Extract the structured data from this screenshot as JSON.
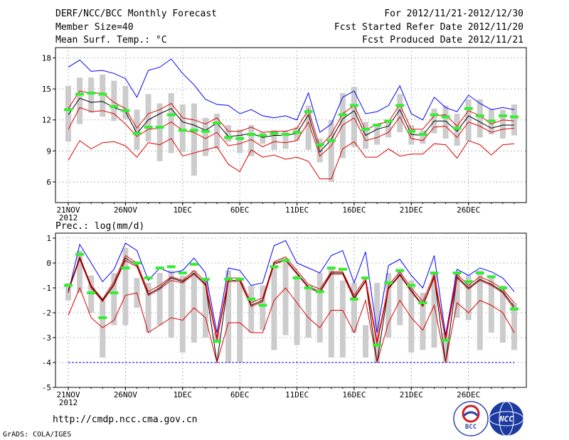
{
  "header": {
    "title": "DERF/NCC/BCC Monthly Forecast",
    "member_size": "Member Size=40",
    "variable": "Mean Surf. Temp.: °C",
    "period": "For 2012/11/21-2012/12/30",
    "start_date": "Fcst Started Refer Date 2012/11/20",
    "produced_date": "Fcst Produced Date 2012/11/21"
  },
  "precip_label": "Prec.: log(mm/d)",
  "footer": {
    "url": "http://cmdp.ncc.cma.gov.cn",
    "credit": "GrADS: COLA/IGES",
    "logo_bcc": "BCC",
    "logo_ncc": "NCC"
  },
  "colors": {
    "max_line": "#0000ff",
    "min_line": "#e00000",
    "mean_line": "#000000",
    "box": "#cccccc",
    "obs_marker": "#33ee33"
  },
  "chart_data": [
    {
      "type": "line",
      "title": "Mean Surf. Temp.: °C",
      "xlabel": "",
      "ylabel": "°C",
      "ylim": [
        4,
        19
      ],
      "yticks": [
        6,
        9,
        12,
        15,
        18
      ],
      "xticks": [
        {
          "day": 0,
          "label": "21NOV",
          "sub": "2012"
        },
        {
          "day": 5,
          "label": "26NOV"
        },
        {
          "day": 10,
          "label": "1DEC"
        },
        {
          "day": 15,
          "label": "6DEC"
        },
        {
          "day": 20,
          "label": "11DEC"
        },
        {
          "day": 25,
          "label": "16DEC"
        },
        {
          "day": 30,
          "label": "21DEC"
        },
        {
          "day": 35,
          "label": "26DEC"
        }
      ],
      "grid": true,
      "box_low": [
        9.9,
        11.6,
        12.7,
        12.3,
        11.9,
        12.1,
        9.1,
        9.9,
        8.0,
        8.8,
        8.9,
        6.6,
        8.5,
        9.2,
        9.9,
        8.8,
        8.5,
        9.7,
        9.1,
        9.2,
        10.0,
        9.1,
        7.9,
        6.0,
        8.3,
        9.4,
        9.2,
        9.6,
        10.3,
        10.8,
        9.6,
        9.7,
        10.7,
        10.2,
        9.5,
        10.0,
        10.3,
        10.6,
        10.2,
        10.5
      ],
      "box_high": [
        15.3,
        16.1,
        16.1,
        16.4,
        15.8,
        15.3,
        13.0,
        14.5,
        13.6,
        14.6,
        13.5,
        13.6,
        12.2,
        12.6,
        11.5,
        11.1,
        11.5,
        10.8,
        11.0,
        11.0,
        11.3,
        13.4,
        10.2,
        12.0,
        14.6,
        15.2,
        11.8,
        11.6,
        12.0,
        14.5,
        11.5,
        11.0,
        13.1,
        13.4,
        12.6,
        14.0,
        14.0,
        13.0,
        13.0,
        13.5
      ],
      "obs": [
        13.0,
        14.5,
        14.6,
        14.5,
        13.3,
        12.9,
        10.7,
        11.3,
        11.3,
        12.5,
        11.0,
        11.0,
        10.9,
        11.7,
        10.3,
        10.2,
        10.6,
        10.5,
        10.7,
        10.6,
        10.8,
        12.8,
        9.6,
        10.0,
        12.5,
        13.4,
        11.1,
        11.5,
        11.9,
        13.4,
        10.9,
        10.6,
        12.5,
        12.3,
        11.2,
        13.1,
        12.4,
        11.9,
        12.4,
        12.3
      ],
      "series": [
        {
          "name": "max",
          "values": [
            17.1,
            17.8,
            16.7,
            16.8,
            16.5,
            16.0,
            14.2,
            16.8,
            17.1,
            17.9,
            16.5,
            15.4,
            14.0,
            13.5,
            13.4,
            12.6,
            13.0,
            12.4,
            12.2,
            12.4,
            12.0,
            14.6,
            10.8,
            11.6,
            14.2,
            14.8,
            12.6,
            12.8,
            13.4,
            15.3,
            12.6,
            12.0,
            14.2,
            13.2,
            12.8,
            14.4,
            13.6,
            13.0,
            13.2,
            13.0
          ]
        },
        {
          "name": "p90",
          "values": [
            13.1,
            14.8,
            14.6,
            14.6,
            13.7,
            13.1,
            11.2,
            12.6,
            13.0,
            13.6,
            12.2,
            12.0,
            11.6,
            12.2,
            10.9,
            10.9,
            11.3,
            10.8,
            10.9,
            10.9,
            11.2,
            13.0,
            9.4,
            10.6,
            12.6,
            13.4,
            11.0,
            11.6,
            11.8,
            13.5,
            11.1,
            11.1,
            12.4,
            12.5,
            11.4,
            12.9,
            12.4,
            11.6,
            12.0,
            11.9
          ]
        },
        {
          "name": "mean",
          "values": [
            12.5,
            14.1,
            13.7,
            13.8,
            13.2,
            12.8,
            10.7,
            12.0,
            12.6,
            13.1,
            11.8,
            11.5,
            11.0,
            11.7,
            10.4,
            10.5,
            10.7,
            10.3,
            10.5,
            10.5,
            10.7,
            12.5,
            8.9,
            10.1,
            12.1,
            12.9,
            10.5,
            11.1,
            11.4,
            13.0,
            10.6,
            10.5,
            11.9,
            11.9,
            10.9,
            12.4,
            11.8,
            11.2,
            11.5,
            11.5
          ]
        },
        {
          "name": "p10",
          "values": [
            11.1,
            13.2,
            12.8,
            12.9,
            12.6,
            11.6,
            10.4,
            11.1,
            11.2,
            11.8,
            11.0,
            10.8,
            10.2,
            10.8,
            9.5,
            9.7,
            10.1,
            9.4,
            9.9,
            9.8,
            10.0,
            11.8,
            8.5,
            9.5,
            11.5,
            12.2,
            10.0,
            10.3,
            10.8,
            12.3,
            10.2,
            10.0,
            11.3,
            11.4,
            10.3,
            11.8,
            11.4,
            10.8,
            11.1,
            11.2
          ]
        },
        {
          "name": "min",
          "values": [
            8.1,
            10.0,
            9.2,
            9.8,
            9.9,
            9.5,
            8.4,
            9.8,
            9.6,
            10.2,
            8.5,
            8.8,
            9.1,
            9.4,
            7.7,
            7.0,
            9.1,
            8.4,
            8.6,
            8.2,
            8.4,
            8.0,
            6.3,
            6.3,
            9.2,
            9.9,
            8.4,
            8.4,
            9.2,
            8.5,
            8.7,
            8.7,
            9.7,
            9.6,
            8.3,
            10.0,
            9.6,
            8.6,
            9.6,
            9.7
          ]
        }
      ]
    },
    {
      "type": "line",
      "title": "Prec.: log(mm/d)",
      "xlabel": "",
      "ylabel": "log(mm/d)",
      "ylim": [
        -5,
        1.2
      ],
      "yticks": [
        -5,
        -4,
        -3,
        -2,
        -1,
        0,
        1
      ],
      "xticks": [
        {
          "day": 0,
          "label": "21NOV",
          "sub": "2012"
        },
        {
          "day": 5,
          "label": "26NOV"
        },
        {
          "day": 10,
          "label": "1DEC"
        },
        {
          "day": 15,
          "label": "6DEC"
        },
        {
          "day": 20,
          "label": "11DEC"
        },
        {
          "day": 25,
          "label": "16DEC"
        },
        {
          "day": 30,
          "label": "21DEC"
        },
        {
          "day": 35,
          "label": "26DEC"
        }
      ],
      "grid": true,
      "baseline": -4,
      "box_low": [
        -1.5,
        -1.2,
        -2.0,
        -3.8,
        -2.5,
        -2.5,
        -1.8,
        -2.8,
        -2.5,
        -3.0,
        -3.6,
        -3.2,
        -3.0,
        -3.2,
        -4.0,
        -4.0,
        -2.8,
        -2.7,
        -3.5,
        -2.9,
        -3.3,
        -3.0,
        -3.2,
        -3.8,
        -3.8,
        -2.8,
        -3.8,
        -4.0,
        -3.0,
        -2.5,
        -3.6,
        -3.5,
        -3.4,
        -4.0,
        -2.2,
        -2.3,
        -3.5,
        -2.8,
        -3.2,
        -3.5
      ],
      "box_high": [
        -0.8,
        0.5,
        -0.5,
        -1.5,
        -0.4,
        0.6,
        -0.6,
        -0.8,
        -0.4,
        -0.3,
        -0.5,
        -0.3,
        -0.6,
        -2.8,
        -0.3,
        -0.8,
        -0.9,
        -0.9,
        -0.1,
        0.2,
        -0.5,
        -0.9,
        -0.4,
        -0.2,
        -0.7,
        -0.8,
        -2.5,
        -0.8,
        -0.4,
        -0.3,
        -0.7,
        -1.2,
        -0.4,
        -2.8,
        -0.4,
        -0.5,
        -0.3,
        -0.6,
        -0.9,
        -1.6
      ],
      "obs": [
        -0.9,
        0.35,
        -1.2,
        -2.2,
        -1.2,
        -0.2,
        0.0,
        -0.6,
        -0.2,
        -0.15,
        -0.4,
        -0.05,
        -0.65,
        -3.15,
        -0.65,
        -0.65,
        -1.45,
        -1.7,
        -0.15,
        0.1,
        -0.6,
        -1.0,
        -1.15,
        -0.2,
        -0.25,
        -1.45,
        -0.6,
        -3.3,
        -0.8,
        -0.3,
        -0.9,
        -1.6,
        -0.4,
        -3.1,
        -0.4,
        -0.75,
        -0.4,
        -0.55,
        -1.0,
        -1.85
      ],
      "series": [
        {
          "name": "max",
          "values": [
            -1.2,
            0.75,
            0.0,
            -0.75,
            -0.25,
            0.8,
            0.5,
            -0.7,
            -0.2,
            -0.4,
            -0.3,
            0.2,
            -0.4,
            -2.8,
            -0.2,
            -0.3,
            -0.9,
            -0.8,
            0.7,
            0.9,
            0.0,
            -0.2,
            -0.4,
            0.3,
            0.5,
            -0.8,
            0.45,
            -2.8,
            -0.1,
            0.15,
            -0.5,
            -1.0,
            0.3,
            -2.9,
            -0.25,
            -0.5,
            -0.2,
            -0.35,
            -0.6,
            -1.15
          ]
        },
        {
          "name": "p90",
          "values": [
            -1.1,
            0.25,
            -0.9,
            -1.45,
            -0.75,
            0.3,
            0.0,
            -1.15,
            -0.9,
            -0.55,
            -0.7,
            -0.3,
            -0.75,
            -3.0,
            -0.6,
            -0.6,
            -1.6,
            -1.4,
            0.05,
            0.25,
            -0.3,
            -0.85,
            -1.05,
            -0.35,
            -0.35,
            -1.3,
            -0.6,
            -3.15,
            -0.9,
            -0.35,
            -1.0,
            -1.55,
            -0.45,
            -3.0,
            -0.45,
            -0.9,
            -0.55,
            -0.75,
            -1.05,
            -1.6
          ]
        },
        {
          "name": "mean",
          "values": [
            -1.1,
            0.2,
            -0.95,
            -1.5,
            -0.85,
            0.2,
            -0.1,
            -1.25,
            -1.0,
            -0.6,
            -0.75,
            -0.4,
            -0.85,
            -4.0,
            -0.7,
            -0.7,
            -1.7,
            -1.5,
            0.0,
            0.15,
            -0.4,
            -0.95,
            -1.15,
            -0.4,
            -0.4,
            -1.4,
            -0.7,
            -4.0,
            -1.0,
            -0.45,
            -1.1,
            -1.7,
            -0.55,
            -4.0,
            -0.55,
            -1.0,
            -0.65,
            -0.85,
            -1.15,
            -1.75
          ]
        },
        {
          "name": "p10",
          "values": [
            -1.15,
            0.15,
            -1.0,
            -1.55,
            -0.9,
            0.1,
            -0.15,
            -1.3,
            -1.05,
            -0.7,
            -0.8,
            -0.45,
            -0.9,
            -3.1,
            -0.75,
            -0.75,
            -1.75,
            -1.55,
            -0.05,
            0.1,
            -0.45,
            -1.0,
            -1.2,
            -0.45,
            -0.45,
            -1.45,
            -0.75,
            -3.25,
            -1.05,
            -0.5,
            -1.15,
            -1.75,
            -0.6,
            -3.1,
            -0.6,
            -1.05,
            -0.7,
            -0.9,
            -1.2,
            -1.85
          ]
        },
        {
          "name": "min",
          "values": [
            -2.1,
            -1.0,
            -2.2,
            -2.6,
            -2.3,
            -1.3,
            -1.2,
            -2.8,
            -2.5,
            -2.2,
            -2.3,
            -1.8,
            -2.2,
            -4.0,
            -2.4,
            -2.4,
            -2.8,
            -2.8,
            -1.5,
            -1.0,
            -1.6,
            -2.2,
            -2.6,
            -1.9,
            -1.9,
            -2.8,
            -1.5,
            -4.0,
            -2.4,
            -1.5,
            -2.2,
            -2.7,
            -1.7,
            -4.0,
            -1.6,
            -2.0,
            -1.5,
            -1.7,
            -2.0,
            -2.8
          ]
        }
      ]
    }
  ]
}
